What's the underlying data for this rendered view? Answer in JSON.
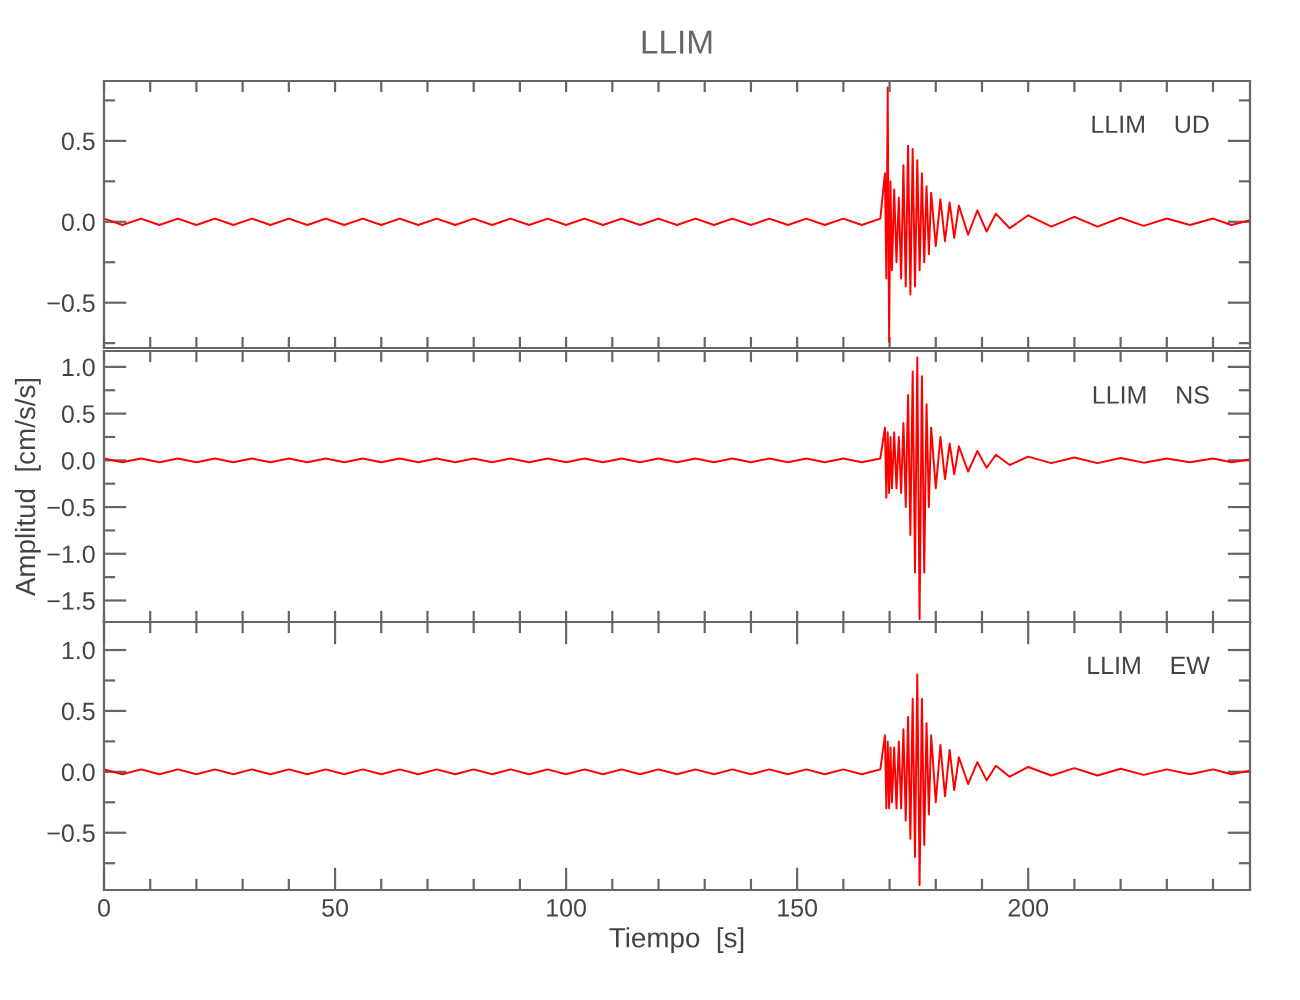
{
  "chart_data": [
    {
      "type": "line",
      "title": "LLIM",
      "annotations": [
        "LLIM    UD"
      ],
      "x": [
        0,
        4,
        8,
        12,
        16,
        20,
        24,
        28,
        32,
        36,
        40,
        44,
        48,
        52,
        56,
        60,
        64,
        68,
        72,
        76,
        80,
        84,
        88,
        92,
        96,
        100,
        104,
        108,
        112,
        116,
        120,
        124,
        128,
        132,
        136,
        140,
        144,
        148,
        152,
        156,
        160,
        164,
        168,
        169,
        169.3,
        169.6,
        169.9,
        170.2,
        170.5,
        171,
        171.5,
        172,
        172.5,
        173,
        173.5,
        174,
        174.5,
        175,
        175.5,
        176,
        176.5,
        177,
        177.5,
        178,
        178.5,
        179,
        180,
        181,
        182,
        183,
        184,
        185,
        187,
        189,
        191,
        193,
        196,
        200,
        205,
        210,
        215,
        220,
        225,
        230,
        235,
        240,
        244,
        248
      ],
      "series": [
        {
          "color": "#ff0000",
          "values": [
            0.02,
            -0.02,
            0.02,
            -0.02,
            0.02,
            -0.02,
            0.02,
            -0.02,
            0.02,
            -0.02,
            0.02,
            -0.02,
            0.02,
            -0.02,
            0.02,
            -0.02,
            0.02,
            -0.02,
            0.02,
            -0.02,
            0.02,
            -0.02,
            0.02,
            -0.02,
            0.02,
            -0.02,
            0.02,
            -0.02,
            0.02,
            -0.02,
            0.02,
            -0.02,
            0.02,
            -0.02,
            0.02,
            -0.02,
            0.02,
            -0.02,
            0.02,
            -0.02,
            0.02,
            -0.02,
            0.02,
            0.3,
            -0.35,
            0.83,
            -0.74,
            0.25,
            -0.3,
            0.2,
            -0.25,
            0.15,
            -0.35,
            0.35,
            -0.4,
            0.47,
            -0.45,
            0.45,
            -0.4,
            0.38,
            -0.3,
            0.3,
            -0.25,
            0.22,
            -0.2,
            0.18,
            -0.15,
            0.14,
            -0.12,
            0.12,
            -0.1,
            0.1,
            -0.08,
            0.07,
            -0.06,
            0.05,
            -0.04,
            0.04,
            -0.03,
            0.03,
            -0.03,
            0.025,
            -0.025,
            0.02,
            -0.02,
            0.02,
            -0.02,
            0.01
          ]
        }
      ],
      "xlim": [
        0,
        248
      ],
      "ylim": [
        -0.78,
        0.87
      ],
      "tick_labels": "y",
      "xticks": [
        {
          "value": 0,
          "label": null
        },
        {
          "value": 10,
          "label": null
        },
        {
          "value": 20,
          "label": null
        },
        {
          "value": 30,
          "label": null
        },
        {
          "value": 40,
          "label": null
        },
        {
          "value": 50,
          "label": null
        },
        {
          "value": 60,
          "label": null
        },
        {
          "value": 70,
          "label": null
        },
        {
          "value": 80,
          "label": null
        },
        {
          "value": 90,
          "label": null
        },
        {
          "value": 100,
          "label": null
        },
        {
          "value": 110,
          "label": null
        },
        {
          "value": 120,
          "label": null
        },
        {
          "value": 130,
          "label": null
        },
        {
          "value": 140,
          "label": null
        },
        {
          "value": 150,
          "label": null
        },
        {
          "value": 160,
          "label": null
        },
        {
          "value": 170,
          "label": null
        },
        {
          "value": 180,
          "label": null
        },
        {
          "value": 190,
          "label": null
        },
        {
          "value": 200,
          "label": null
        },
        {
          "value": 210,
          "label": null
        },
        {
          "value": 220,
          "label": null
        },
        {
          "value": 230,
          "label": null
        },
        {
          "value": 240,
          "label": null
        }
      ],
      "yticks": [
        {
          "value": -0.75,
          "label": null
        },
        {
          "value": -0.5,
          "label": "−0.5"
        },
        {
          "value": -0.25,
          "label": null
        },
        {
          "value": 0,
          "label": "0.0"
        },
        {
          "value": 0.25,
          "label": null
        },
        {
          "value": 0.5,
          "label": "0.5"
        },
        {
          "value": 0.75,
          "label": null
        }
      ]
    },
    {
      "type": "line",
      "ylabel": "Amplitud  [cm/s/s]",
      "annotations": [
        "LLIM    NS"
      ],
      "x": [
        0,
        4,
        8,
        12,
        16,
        20,
        24,
        28,
        32,
        36,
        40,
        44,
        48,
        52,
        56,
        60,
        64,
        68,
        72,
        76,
        80,
        84,
        88,
        92,
        96,
        100,
        104,
        108,
        112,
        116,
        120,
        124,
        128,
        132,
        136,
        140,
        144,
        148,
        152,
        156,
        160,
        164,
        168,
        169,
        169.3,
        169.6,
        169.9,
        170.2,
        170.5,
        171,
        171.5,
        172,
        172.5,
        173,
        173.5,
        174,
        174.5,
        175,
        175.5,
        176,
        176.5,
        177,
        177.5,
        178,
        178.5,
        179,
        180,
        181,
        182,
        183,
        184,
        185,
        187,
        189,
        191,
        193,
        196,
        200,
        205,
        210,
        215,
        220,
        225,
        230,
        235,
        240,
        244,
        248
      ],
      "series": [
        {
          "color": "#ff0000",
          "values": [
            0.02,
            -0.02,
            0.02,
            -0.02,
            0.02,
            -0.02,
            0.02,
            -0.02,
            0.02,
            -0.02,
            0.02,
            -0.02,
            0.02,
            -0.02,
            0.02,
            -0.02,
            0.02,
            -0.02,
            0.02,
            -0.02,
            0.02,
            -0.02,
            0.02,
            -0.02,
            0.02,
            -0.02,
            0.02,
            -0.02,
            0.02,
            -0.02,
            0.02,
            -0.02,
            0.02,
            -0.02,
            0.02,
            -0.02,
            0.02,
            -0.02,
            0.02,
            -0.02,
            0.02,
            -0.02,
            0.02,
            0.35,
            -0.4,
            0.3,
            -0.35,
            0.25,
            -0.3,
            0.3,
            -0.3,
            0.25,
            -0.35,
            0.4,
            -0.5,
            0.7,
            -0.8,
            0.95,
            -1.2,
            1.1,
            -1.7,
            0.9,
            -1.2,
            0.6,
            -0.5,
            0.35,
            -0.3,
            0.25,
            -0.2,
            0.18,
            -0.15,
            0.15,
            -0.12,
            0.1,
            -0.08,
            0.06,
            -0.05,
            0.04,
            -0.03,
            0.03,
            -0.03,
            0.025,
            -0.025,
            0.02,
            -0.02,
            0.02,
            -0.02,
            0.01
          ]
        }
      ],
      "xlim": [
        0,
        248
      ],
      "ylim": [
        -1.73,
        1.17
      ],
      "tick_labels": "y",
      "xticks": [
        {
          "value": 0,
          "label": null
        },
        {
          "value": 10,
          "label": null
        },
        {
          "value": 20,
          "label": null
        },
        {
          "value": 30,
          "label": null
        },
        {
          "value": 40,
          "label": null
        },
        {
          "value": 50,
          "label": null
        },
        {
          "value": 60,
          "label": null
        },
        {
          "value": 70,
          "label": null
        },
        {
          "value": 80,
          "label": null
        },
        {
          "value": 90,
          "label": null
        },
        {
          "value": 100,
          "label": null
        },
        {
          "value": 110,
          "label": null
        },
        {
          "value": 120,
          "label": null
        },
        {
          "value": 130,
          "label": null
        },
        {
          "value": 140,
          "label": null
        },
        {
          "value": 150,
          "label": null
        },
        {
          "value": 160,
          "label": null
        },
        {
          "value": 170,
          "label": null
        },
        {
          "value": 180,
          "label": null
        },
        {
          "value": 190,
          "label": null
        },
        {
          "value": 200,
          "label": null
        },
        {
          "value": 210,
          "label": null
        },
        {
          "value": 220,
          "label": null
        },
        {
          "value": 230,
          "label": null
        },
        {
          "value": 240,
          "label": null
        }
      ],
      "yticks": [
        {
          "value": -1.5,
          "label": "−1.5"
        },
        {
          "value": -1.25,
          "label": null
        },
        {
          "value": -1.0,
          "label": "−1.0"
        },
        {
          "value": -0.75,
          "label": null
        },
        {
          "value": -0.5,
          "label": "−0.5"
        },
        {
          "value": -0.25,
          "label": null
        },
        {
          "value": 0,
          "label": "0.0"
        },
        {
          "value": 0.25,
          "label": null
        },
        {
          "value": 0.5,
          "label": "0.5"
        },
        {
          "value": 0.75,
          "label": null
        },
        {
          "value": 1.0,
          "label": "1.0"
        }
      ]
    },
    {
      "type": "line",
      "xlabel": "Tiempo  [s]",
      "annotations": [
        "LLIM    EW"
      ],
      "x": [
        0,
        4,
        8,
        12,
        16,
        20,
        24,
        28,
        32,
        36,
        40,
        44,
        48,
        52,
        56,
        60,
        64,
        68,
        72,
        76,
        80,
        84,
        88,
        92,
        96,
        100,
        104,
        108,
        112,
        116,
        120,
        124,
        128,
        132,
        136,
        140,
        144,
        148,
        152,
        156,
        160,
        164,
        168,
        169,
        169.3,
        169.6,
        169.9,
        170.2,
        170.5,
        171,
        171.5,
        172,
        172.5,
        173,
        173.5,
        174,
        174.5,
        175,
        175.5,
        176,
        176.5,
        177,
        177.5,
        178,
        178.5,
        179,
        180,
        181,
        182,
        183,
        184,
        185,
        187,
        189,
        191,
        193,
        196,
        200,
        205,
        210,
        215,
        220,
        225,
        230,
        235,
        240,
        244,
        248
      ],
      "series": [
        {
          "color": "#ff0000",
          "values": [
            0.02,
            -0.02,
            0.02,
            -0.02,
            0.02,
            -0.02,
            0.02,
            -0.02,
            0.02,
            -0.02,
            0.02,
            -0.02,
            0.02,
            -0.02,
            0.02,
            -0.02,
            0.02,
            -0.02,
            0.02,
            -0.02,
            0.02,
            -0.02,
            0.02,
            -0.02,
            0.02,
            -0.02,
            0.02,
            -0.02,
            0.02,
            -0.02,
            0.02,
            -0.02,
            0.02,
            -0.02,
            0.02,
            -0.02,
            0.02,
            -0.02,
            0.02,
            -0.02,
            0.02,
            -0.02,
            0.02,
            0.3,
            -0.3,
            0.25,
            -0.3,
            0.2,
            -0.25,
            0.2,
            -0.3,
            0.25,
            -0.3,
            0.35,
            -0.4,
            0.45,
            -0.55,
            0.6,
            -0.7,
            0.8,
            -0.93,
            0.6,
            -0.6,
            0.4,
            -0.35,
            0.3,
            -0.25,
            0.22,
            -0.2,
            0.18,
            -0.15,
            0.12,
            -0.1,
            0.08,
            -0.07,
            0.05,
            -0.04,
            0.04,
            -0.03,
            0.03,
            -0.03,
            0.025,
            -0.025,
            0.02,
            -0.02,
            0.02,
            -0.02,
            0.01
          ]
        }
      ],
      "xlim": [
        0,
        248
      ],
      "ylim": [
        -0.97,
        1.23
      ],
      "xticks": [
        0,
        {
          "value": 10,
          "label": null
        },
        {
          "value": 20,
          "label": null
        },
        {
          "value": 30,
          "label": null
        },
        {
          "value": 40,
          "label": null
        },
        50,
        {
          "value": 60,
          "label": null
        },
        {
          "value": 70,
          "label": null
        },
        {
          "value": 80,
          "label": null
        },
        {
          "value": 90,
          "label": null
        },
        100,
        {
          "value": 110,
          "label": null
        },
        {
          "value": 120,
          "label": null
        },
        {
          "value": 130,
          "label": null
        },
        {
          "value": 140,
          "label": null
        },
        150,
        {
          "value": 160,
          "label": null
        },
        {
          "value": 170,
          "label": null
        },
        {
          "value": 180,
          "label": null
        },
        {
          "value": 190,
          "label": null
        },
        200,
        {
          "value": 210,
          "label": null
        },
        {
          "value": 220,
          "label": null
        },
        {
          "value": 230,
          "label": null
        },
        {
          "value": 240,
          "label": null
        }
      ],
      "yticks": [
        {
          "value": -0.75,
          "label": null
        },
        {
          "value": -0.5,
          "label": "−0.5"
        },
        {
          "value": -0.25,
          "label": null
        },
        {
          "value": 0,
          "label": "0.0"
        },
        {
          "value": 0.25,
          "label": null
        },
        {
          "value": 0.5,
          "label": "0.5"
        },
        {
          "value": 0.75,
          "label": null
        },
        {
          "value": 1.0,
          "label": "1.0"
        }
      ]
    }
  ]
}
